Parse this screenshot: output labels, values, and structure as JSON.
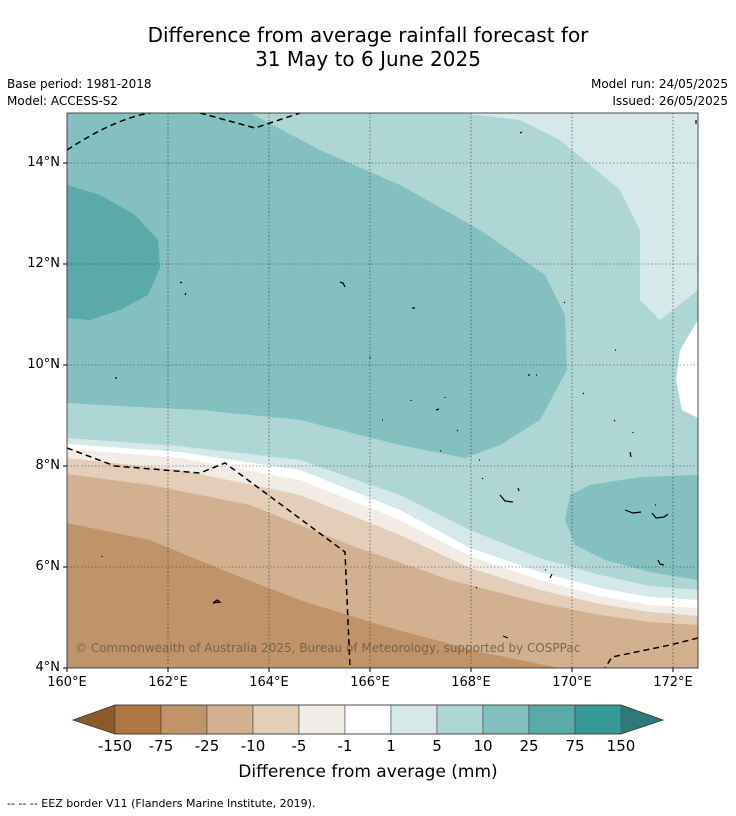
{
  "header": {
    "title_line1": "Difference from average rainfall forecast for",
    "title_line2": "31 May to 6 June 2025",
    "base_period": "Base period: 1981-2018",
    "model": "Model: ACCESS-S2",
    "model_run": "Model run: 24/05/2025",
    "issued": "Issued: 26/05/2025"
  },
  "map": {
    "lat_labels": [
      "14°N",
      "12°N",
      "10°N",
      "8°N",
      "6°N",
      "4°N"
    ],
    "lon_labels": [
      "160°E",
      "162°E",
      "164°E",
      "166°E",
      "168°E",
      "170°E",
      "172°E"
    ],
    "copyright": "© Commonwealth of Australia 2025, Bureau of Meteorology, supported by COSPPac"
  },
  "colorbar": {
    "labels": [
      "-150",
      "-75",
      "-25",
      "-10",
      "-5",
      "-1",
      "1",
      "5",
      "10",
      "25",
      "75",
      "150"
    ],
    "colors": [
      "#8b5a2b",
      "#ae7840",
      "#c09468",
      "#d3b190",
      "#e4cdb9",
      "#f2ece6",
      "#ffffff",
      "#d6e9e9",
      "#aed6d5",
      "#84c0c0",
      "#5aaaaa",
      "#369a98",
      "#2f7a78"
    ],
    "title": "Difference from average (mm)"
  },
  "footnote": "--  --  -- EEZ border V11 (Flanders Marine Institute, 2019)."
}
